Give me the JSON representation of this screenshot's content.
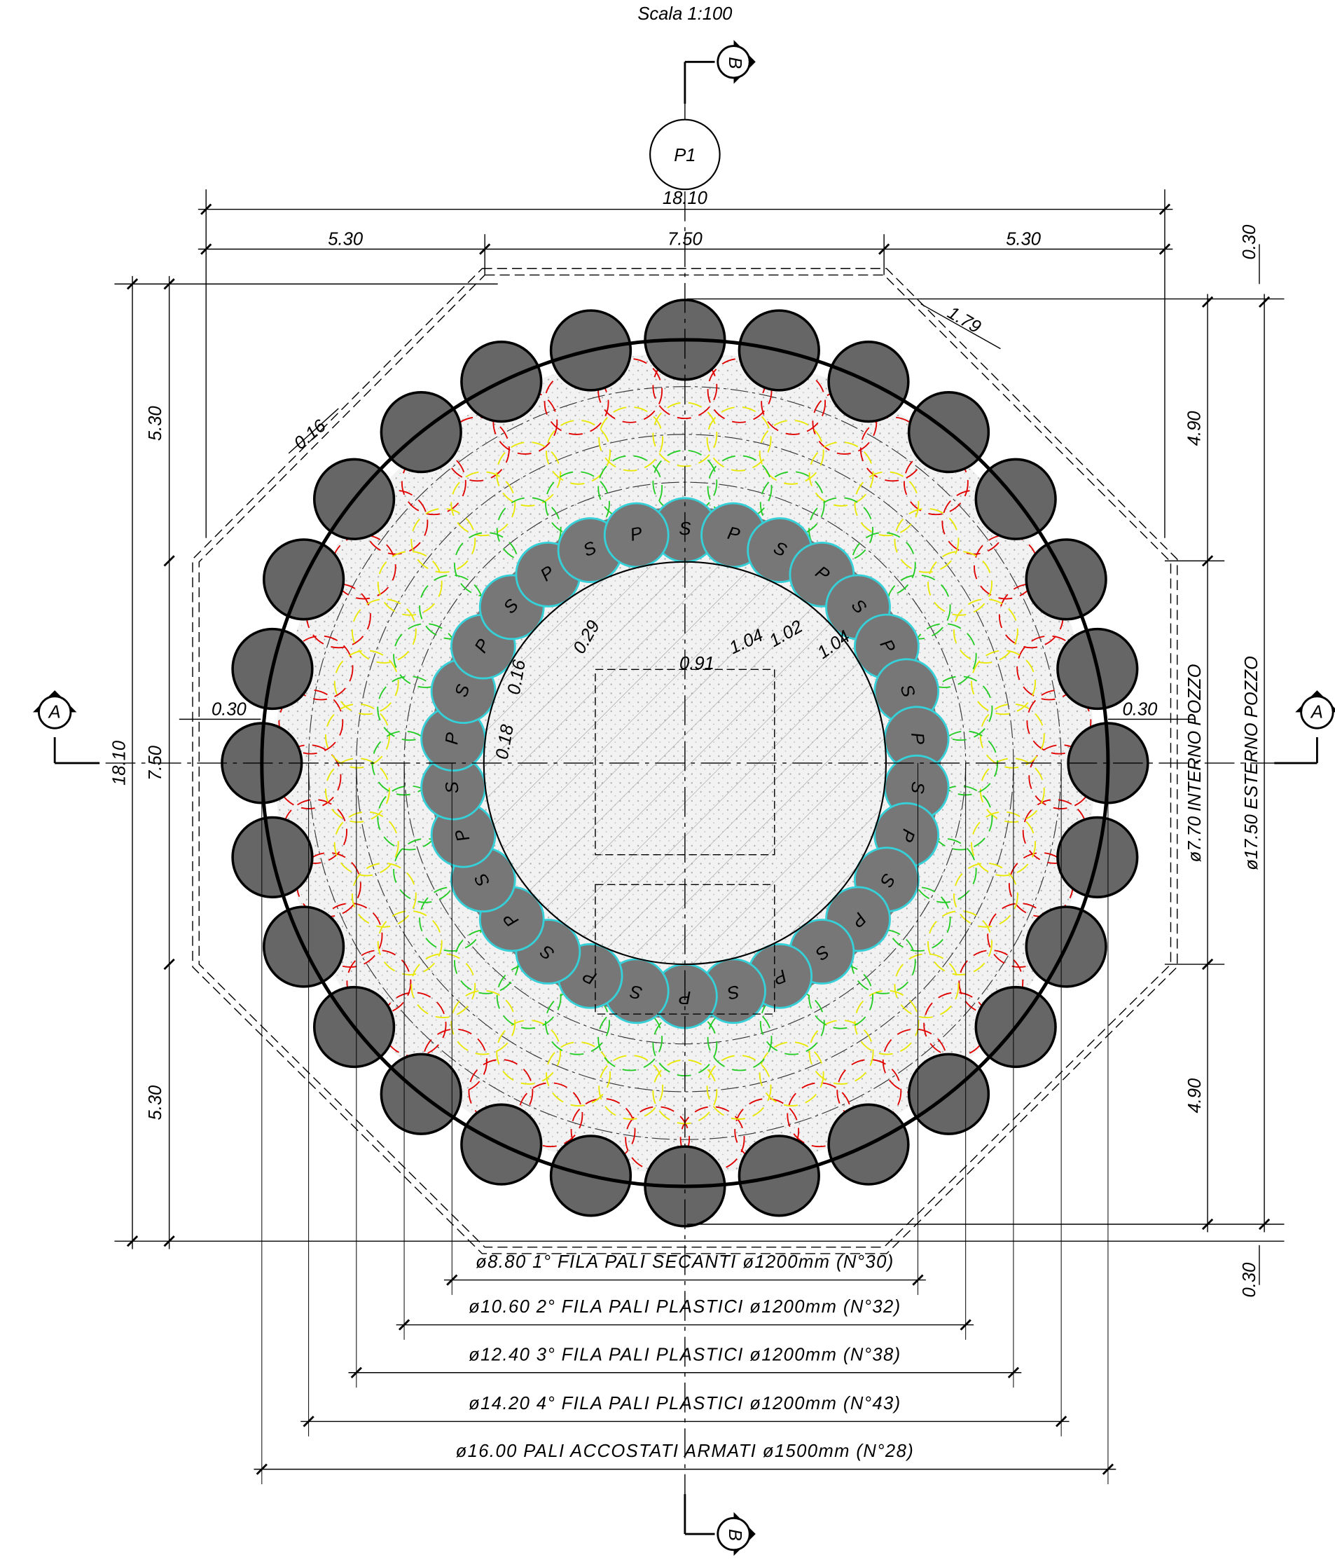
{
  "title": "Scala 1:100",
  "plan_label": "P1",
  "section_markers": [
    "B",
    "A",
    "A",
    "B"
  ],
  "dimensions": {
    "top_total": "18.10",
    "top_left": "5.30",
    "top_middle": "7.50",
    "top_right": "5.30",
    "left_total": "18.10",
    "left_top": "5.30",
    "left_middle": "7.50",
    "left_bottom": "5.30",
    "right_top": "4.90",
    "right_bottom": "4.90",
    "right_offset_top": "0.30",
    "right_offset_bottom": "0.30",
    "inner_diameter": "ø7.70 INTERNO POZZO",
    "outer_diameter": "ø17.50 ESTERNO POZZO",
    "details": [
      "1.79",
      "0.16",
      "0.29",
      "1.04",
      "1.02",
      "1.04",
      "0.91",
      "0.16",
      "0.18",
      "0.30",
      "0.30"
    ]
  },
  "pile_rows": [
    "ø8.80 1° FILA PALI SECANTI ø1200mm (N°30)",
    "ø10.60 2° FILA PALI PLASTICI ø1200mm (N°32)",
    "ø12.40 3° FILA PALI PLASTICI ø1200mm (N°38)",
    "ø14.20 4° FILA PALI PLASTICI ø1200mm (N°43)",
    "ø16.00 PALI ACCOSTATI ARMATI ø1500mm (N°28)"
  ],
  "secant_pile_labels": [
    "S",
    "P",
    "S",
    "P",
    "S",
    "P",
    "S",
    "P",
    "S",
    "P",
    "S",
    "P",
    "S",
    "P",
    "S",
    "P",
    "S",
    "P",
    "S",
    "P",
    "S",
    "P",
    "S",
    "P",
    "S",
    "P",
    "S",
    "P",
    "S",
    "P"
  ]
}
